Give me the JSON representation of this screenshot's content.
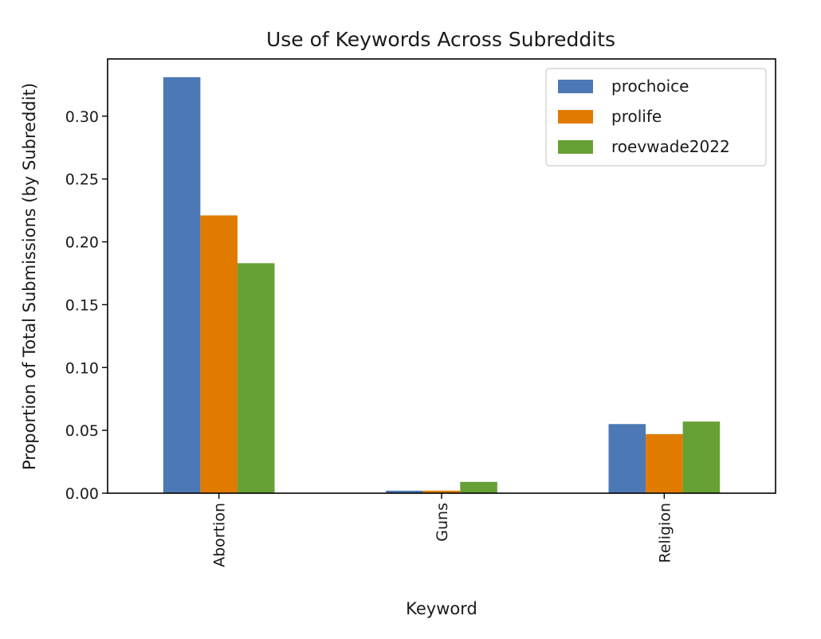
{
  "chart_data": {
    "type": "bar",
    "title": "Use of Keywords Across Subreddits",
    "xlabel": "Keyword",
    "ylabel": "Proportion of Total Submissions (by Subreddit)",
    "categories": [
      "Abortion",
      "Guns",
      "Religion"
    ],
    "series": [
      {
        "name": "prochoice",
        "color": "#4c78b5",
        "values": [
          0.331,
          0.002,
          0.055
        ]
      },
      {
        "name": "prolife",
        "color": "#e07b00",
        "values": [
          0.221,
          0.002,
          0.047
        ]
      },
      {
        "name": "roevwade2022",
        "color": "#67a035",
        "values": [
          0.183,
          0.009,
          0.057
        ]
      }
    ],
    "ylim": [
      0,
      0.3455
    ],
    "yticks": [
      0.0,
      0.05,
      0.1,
      0.15,
      0.2,
      0.25,
      0.3
    ],
    "ytick_labels": [
      "0.00",
      "0.05",
      "0.10",
      "0.15",
      "0.20",
      "0.25",
      "0.30"
    ],
    "xtick_rotation": "vertical",
    "grid": false,
    "legend": "top-right"
  }
}
